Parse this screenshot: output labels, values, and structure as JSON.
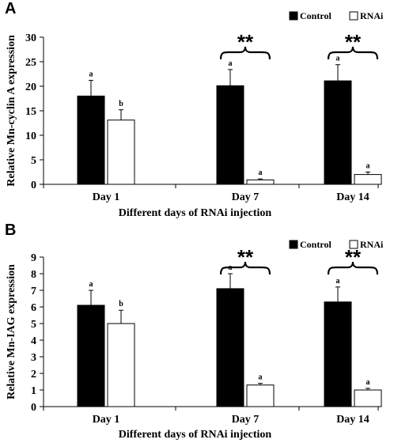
{
  "chart_data": [
    {
      "type": "bar",
      "panel": "A",
      "categories": [
        "Day 1",
        "Day 7",
        "Day 14"
      ],
      "series": [
        {
          "name": "Control",
          "values": [
            18,
            20.1,
            21.1
          ],
          "errors": [
            3.2,
            3.3,
            3.3
          ],
          "letters": [
            "a",
            "a",
            "a"
          ],
          "color": "#000000"
        },
        {
          "name": "RNAi",
          "values": [
            13.1,
            0.9,
            2.0
          ],
          "errors": [
            2.1,
            0.2,
            0.5
          ],
          "letters": [
            "b",
            "a",
            "a"
          ],
          "color": "#ffffff"
        }
      ],
      "significance": [
        "",
        "**",
        "**"
      ],
      "xlabel": "Different days of RNAi injection",
      "ylabel": "Relative Mn-cyclin A expression",
      "ylim": [
        0,
        30
      ],
      "yticks": [
        "0",
        "5",
        "10",
        "15",
        "20",
        "25",
        "30"
      ],
      "legend_position": "top-right",
      "grid": false
    },
    {
      "type": "bar",
      "panel": "B",
      "categories": [
        "Day 1",
        "Day 7",
        "Day 14"
      ],
      "series": [
        {
          "name": "Control",
          "values": [
            6.1,
            7.1,
            6.3
          ],
          "errors": [
            0.9,
            0.9,
            0.9
          ],
          "letters": [
            "a",
            "a",
            "a"
          ],
          "color": "#000000"
        },
        {
          "name": "RNAi",
          "values": [
            5.0,
            1.3,
            1.0
          ],
          "errors": [
            0.8,
            0.1,
            0.1
          ],
          "letters": [
            "b",
            "a",
            "a"
          ],
          "color": "#ffffff"
        }
      ],
      "significance": [
        "",
        "**",
        "**"
      ],
      "xlabel": "Different days of RNAi injection",
      "ylabel": "Relative Mn-IAG expression",
      "ylim": [
        0,
        9
      ],
      "yticks": [
        "0",
        "1",
        "2",
        "3",
        "4",
        "5",
        "6",
        "7",
        "8",
        "9"
      ],
      "legend_position": "top-right",
      "grid": false
    }
  ]
}
